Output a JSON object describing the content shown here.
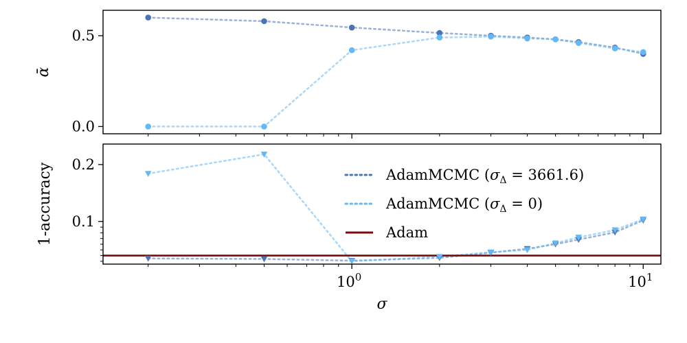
{
  "chart_data": {
    "type": "line",
    "xscale": "log",
    "xlabel": "σ",
    "xlim": [
      0.14,
      11.5
    ],
    "x": [
      0.2,
      0.5,
      1,
      2,
      3,
      4,
      5,
      6,
      8,
      10
    ],
    "xticks": [
      {
        "value": 1,
        "base": "10",
        "exp": "0"
      },
      {
        "value": 10,
        "base": "10",
        "exp": "1"
      }
    ],
    "colors": {
      "dark_blue": "#4a74b4",
      "light_blue": "#66b8f5",
      "adam": "#7a0a0a"
    },
    "legend": {
      "placement": "upper-right-of-lower-panel",
      "entries": [
        {
          "prefix": "AdamMCMC (",
          "symbol": "σ",
          "sub": "Δ",
          "suffix": " = 3661.6)",
          "color": "#4a74b4",
          "style": "dotted"
        },
        {
          "prefix": "AdamMCMC (",
          "symbol": "σ",
          "sub": "Δ",
          "suffix": " = 0)",
          "color": "#66b8f5",
          "style": "dotted"
        },
        {
          "prefix": "Adam",
          "symbol": "",
          "sub": "",
          "suffix": "",
          "color": "#7a0a0a",
          "style": "solid"
        }
      ]
    },
    "panels": [
      {
        "ylabel": "ᾱ",
        "ylim": [
          -0.04,
          0.64
        ],
        "yticks": [
          {
            "value": 0.0,
            "label": "0.0"
          },
          {
            "value": 0.5,
            "label": "0.5"
          }
        ],
        "yminor": [],
        "series": [
          {
            "color": "#4a74b4",
            "marker": "circle",
            "values": [
              0.6,
              0.58,
              0.545,
              0.515,
              0.5,
              0.49,
              0.48,
              0.465,
              0.435,
              0.4
            ]
          },
          {
            "color": "#66b8f5",
            "marker": "circle",
            "values": [
              0.0,
              0.0,
              0.42,
              0.49,
              0.495,
              0.485,
              0.48,
              0.46,
              0.43,
              0.41
            ]
          }
        ],
        "hline": null
      },
      {
        "ylabel": "1-accuracy",
        "ylim": [
          0.025,
          0.236
        ],
        "yticks": [
          {
            "value": 0.1,
            "label": "0.1"
          },
          {
            "value": 0.2,
            "label": "0.2"
          }
        ],
        "yminor": [
          0.03,
          0.04,
          0.05,
          0.06,
          0.07,
          0.08,
          0.09
        ],
        "series": [
          {
            "color": "#4a74b4",
            "marker": "triangle",
            "values": [
              0.035,
              0.034,
              0.031,
              0.036,
              0.045,
              0.052,
              0.06,
              0.068,
              0.081,
              0.102
            ]
          },
          {
            "color": "#66b8f5",
            "marker": "triangle",
            "values": [
              0.184,
              0.218,
              0.03,
              0.038,
              0.046,
              0.05,
              0.062,
              0.072,
              0.085,
              0.104
            ]
          }
        ],
        "hline": {
          "value": 0.04,
          "color": "#7a0a0a"
        }
      }
    ]
  }
}
